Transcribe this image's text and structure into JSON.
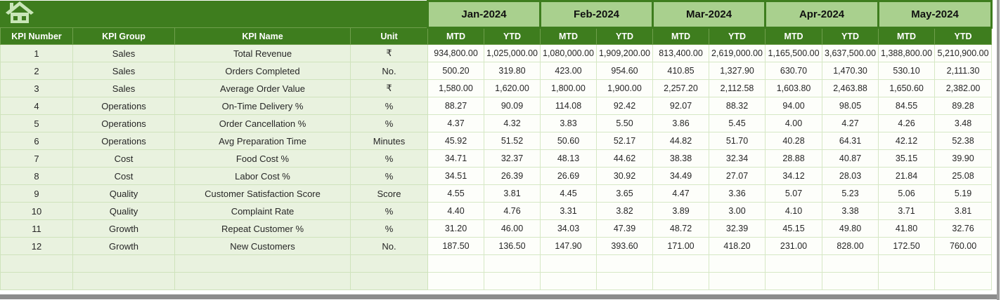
{
  "table": {
    "columns": [
      "KPI Number",
      "KPI Group",
      "KPI Name",
      "Unit"
    ],
    "months": [
      "Jan-2024",
      "Feb-2024",
      "Mar-2024",
      "Apr-2024",
      "May-2024"
    ],
    "sub_headers": [
      "MTD",
      "YTD"
    ],
    "rows": [
      {
        "number": "1",
        "group": "Sales",
        "name": "Total Revenue",
        "unit": "₹",
        "values": [
          "934,800.00",
          "1,025,000.00",
          "1,080,000.00",
          "1,909,200.00",
          "813,400.00",
          "2,619,000.00",
          "1,165,500.00",
          "3,637,500.00",
          "1,388,800.00",
          "5,210,900.00"
        ]
      },
      {
        "number": "2",
        "group": "Sales",
        "name": "Orders Completed",
        "unit": "No.",
        "values": [
          "500.20",
          "319.80",
          "423.00",
          "954.60",
          "410.85",
          "1,327.90",
          "630.70",
          "1,470.30",
          "530.10",
          "2,111.30"
        ]
      },
      {
        "number": "3",
        "group": "Sales",
        "name": "Average Order Value",
        "unit": "₹",
        "values": [
          "1,580.00",
          "1,620.00",
          "1,800.00",
          "1,900.00",
          "2,257.20",
          "2,112.58",
          "1,603.80",
          "2,463.88",
          "1,650.60",
          "2,382.00"
        ]
      },
      {
        "number": "4",
        "group": "Operations",
        "name": "On-Time Delivery %",
        "unit": "%",
        "values": [
          "88.27",
          "90.09",
          "114.08",
          "92.42",
          "92.07",
          "88.32",
          "94.00",
          "98.05",
          "84.55",
          "89.28"
        ]
      },
      {
        "number": "5",
        "group": "Operations",
        "name": "Order Cancellation %",
        "unit": "%",
        "values": [
          "4.37",
          "4.32",
          "3.83",
          "5.50",
          "3.86",
          "5.45",
          "4.00",
          "4.27",
          "4.26",
          "3.48"
        ]
      },
      {
        "number": "6",
        "group": "Operations",
        "name": "Avg Preparation Time",
        "unit": "Minutes",
        "values": [
          "45.92",
          "51.52",
          "50.60",
          "52.17",
          "44.82",
          "51.70",
          "40.28",
          "64.31",
          "42.12",
          "52.38"
        ]
      },
      {
        "number": "7",
        "group": "Cost",
        "name": "Food Cost %",
        "unit": "%",
        "values": [
          "34.71",
          "32.37",
          "48.13",
          "44.62",
          "38.38",
          "32.34",
          "28.88",
          "40.87",
          "35.15",
          "39.90"
        ]
      },
      {
        "number": "8",
        "group": "Cost",
        "name": "Labor Cost %",
        "unit": "%",
        "values": [
          "34.51",
          "26.39",
          "26.69",
          "30.92",
          "34.49",
          "27.07",
          "34.12",
          "28.03",
          "21.84",
          "25.08"
        ]
      },
      {
        "number": "9",
        "group": "Quality",
        "name": "Customer Satisfaction Score",
        "unit": "Score",
        "values": [
          "4.55",
          "3.81",
          "4.45",
          "3.65",
          "4.47",
          "3.36",
          "5.07",
          "5.23",
          "5.06",
          "5.19"
        ]
      },
      {
        "number": "10",
        "group": "Quality",
        "name": "Complaint Rate",
        "unit": "%",
        "values": [
          "4.40",
          "4.76",
          "3.31",
          "3.82",
          "3.89",
          "3.00",
          "4.10",
          "3.38",
          "3.71",
          "3.81"
        ]
      },
      {
        "number": "11",
        "group": "Growth",
        "name": "Repeat Customer %",
        "unit": "%",
        "values": [
          "31.20",
          "46.00",
          "34.03",
          "47.39",
          "48.72",
          "32.39",
          "45.15",
          "49.80",
          "41.80",
          "32.76"
        ]
      },
      {
        "number": "12",
        "group": "Growth",
        "name": "New Customers",
        "unit": "No.",
        "values": [
          "187.50",
          "136.50",
          "147.90",
          "393.60",
          "171.00",
          "418.20",
          "231.00",
          "828.00",
          "172.50",
          "760.00"
        ]
      }
    ],
    "empty_row_count": 2
  },
  "icons": {
    "home": "home-icon"
  },
  "colors": {
    "header_dark_green": "#3E7D1E",
    "month_band_green": "#A9D08E",
    "label_cell_green": "#E9F2DF",
    "gridline_green": "#CFE3BC",
    "window_edge_gray": "#8C8C8C",
    "icon_pale_green": "#C9E6B8"
  }
}
